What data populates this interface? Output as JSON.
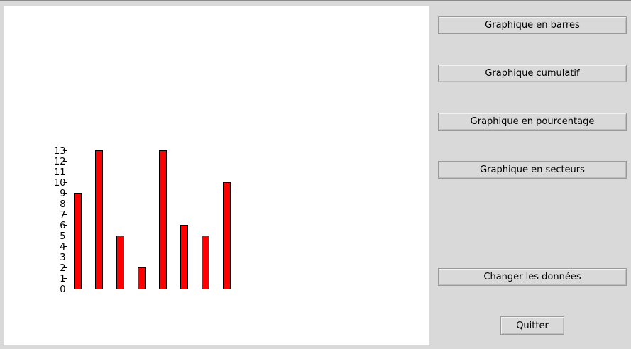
{
  "buttons": {
    "bar_chart": "Graphique en barres",
    "cumulative_chart": "Graphique cumulatif",
    "percentage_chart": "Graphique en pourcentage",
    "pie_chart": "Graphique en secteurs",
    "change_data": "Changer les données",
    "quit": "Quitter"
  },
  "colors": {
    "bar_fill": "#ff0000",
    "panel_bg": "#d9d9d9",
    "canvas_bg": "#ffffff"
  },
  "chart_data": {
    "type": "bar",
    "categories": [
      "",
      "",
      "",
      "",
      "",
      "",
      "",
      ""
    ],
    "values": [
      9,
      13,
      5,
      2,
      13,
      6,
      5,
      10
    ],
    "title": "",
    "xlabel": "",
    "ylabel": "",
    "ylim": [
      0,
      13
    ],
    "yticks": [
      0,
      1,
      2,
      3,
      4,
      5,
      6,
      7,
      8,
      9,
      10,
      11,
      12,
      13
    ],
    "grid": false
  }
}
